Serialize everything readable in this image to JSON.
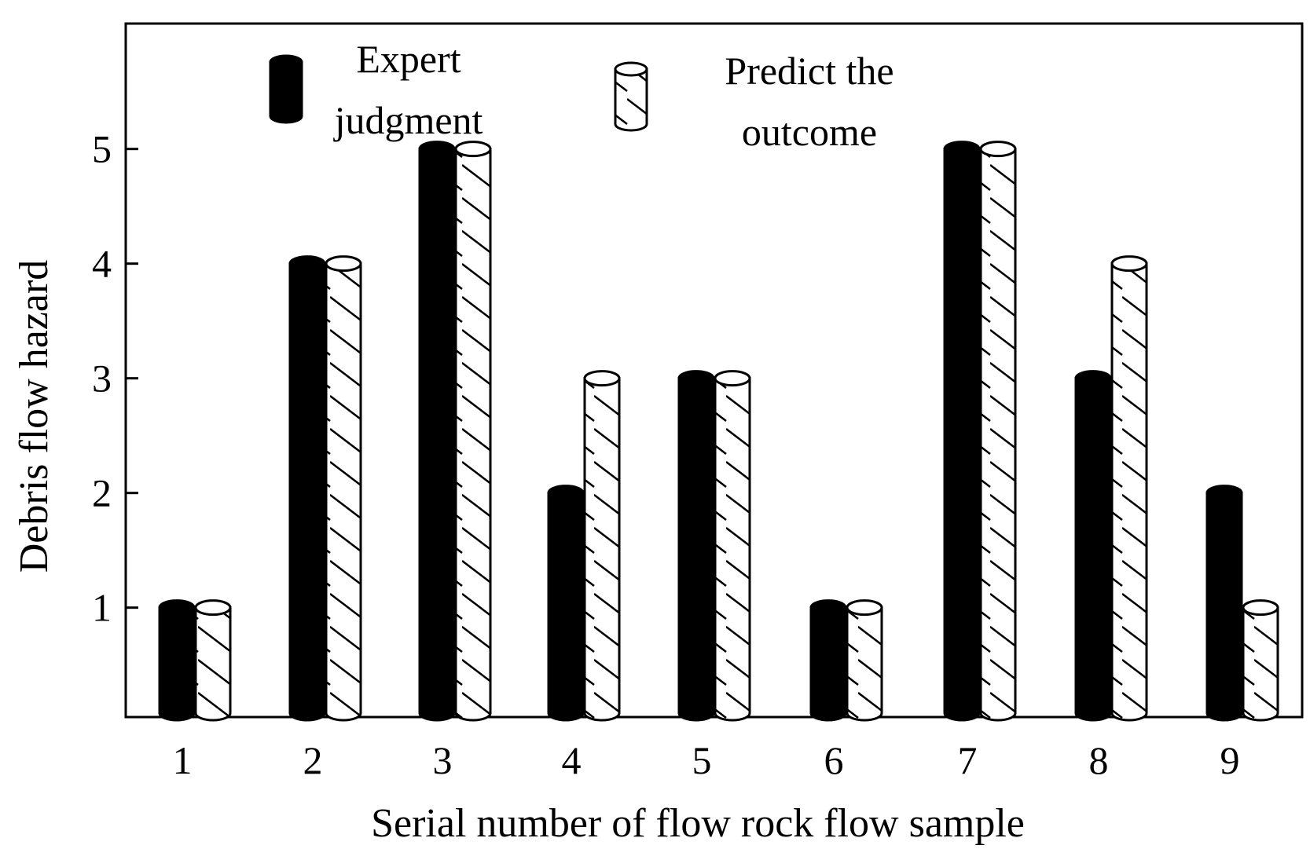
{
  "chart_data": {
    "type": "bar",
    "categories": [
      "1",
      "2",
      "3",
      "4",
      "5",
      "6",
      "7",
      "8",
      "9"
    ],
    "series": [
      {
        "name": "Expert judgment",
        "values": [
          1,
          4,
          5,
          2,
          3,
          1,
          5,
          3,
          2
        ],
        "style": "solid-black"
      },
      {
        "name": "Predict the outcome",
        "values": [
          1,
          4,
          5,
          3,
          3,
          1,
          5,
          4,
          1
        ],
        "style": "hatched"
      }
    ],
    "xlabel": "Serial number of flow rock flow sample",
    "ylabel": "Debris flow hazard",
    "yticks": [
      "1",
      "2",
      "3",
      "4",
      "5"
    ],
    "ylim": [
      0,
      6
    ],
    "grid": false,
    "legend_position": "top",
    "legend": [
      {
        "lines": [
          "Expert",
          "judgment"
        ]
      },
      {
        "lines": [
          "Predict the",
          "outcome"
        ]
      }
    ],
    "colors": {
      "solid": "#000000",
      "hatch_fill": "#ffffff",
      "stroke": "#000000"
    }
  }
}
